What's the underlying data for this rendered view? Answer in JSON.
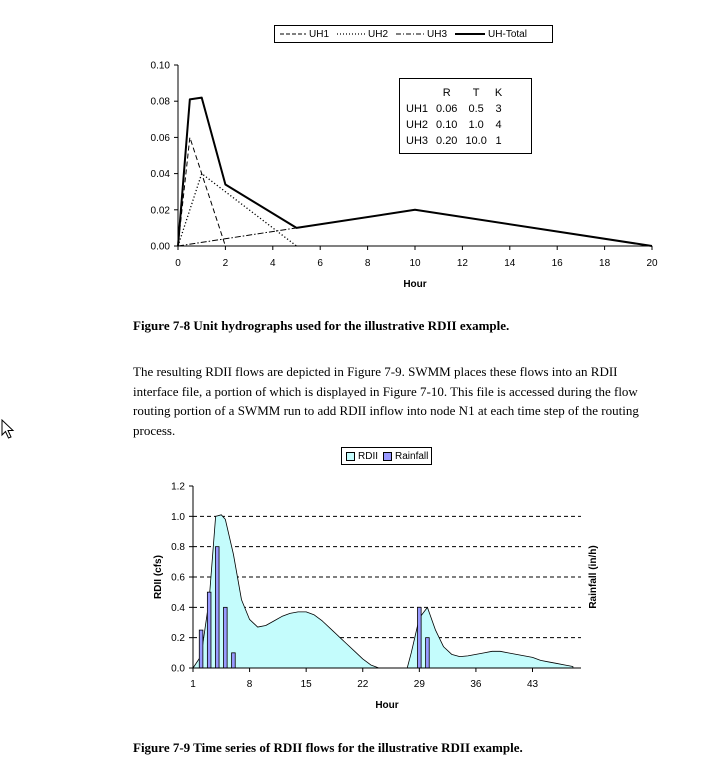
{
  "figure1": {
    "legend": [
      "UH1",
      "UH2",
      "UH3",
      "UH-Total"
    ],
    "caption": "Figure 7-8 Unit hydrographs used for the illustrative RDII example.",
    "table": {
      "headers": [
        "",
        "R",
        "T",
        "K"
      ],
      "rows": [
        [
          "UH1",
          "0.06",
          "0.5",
          "3"
        ],
        [
          "UH2",
          "0.10",
          "1.0",
          "4"
        ],
        [
          "UH3",
          "0.20",
          "10.0",
          "1"
        ]
      ]
    }
  },
  "paragraph": {
    "lines": [
      "The resulting RDII flows are depicted in Figure 7-9. SWMM places these flows into an RDII",
      "interface file, a portion of which is displayed in Figure 7-10. This file is accessed during the flow",
      "routing portion of a SWMM run to add RDII inflow into node N1 at each time step of the routing",
      "process."
    ]
  },
  "figure2": {
    "legend": [
      "RDII",
      "Rainfall"
    ],
    "caption": "Figure 7-9 Time series of RDII flows for the illustrative RDII example."
  },
  "chart_data": [
    {
      "type": "line",
      "xlabel": "Hour",
      "ylabel": "",
      "xlim": [
        0,
        20
      ],
      "ylim": [
        0,
        0.1
      ],
      "x_ticks": [
        "0",
        "2",
        "4",
        "6",
        "8",
        "10",
        "12",
        "14",
        "16",
        "18",
        "20"
      ],
      "y_ticks": [
        "0.00",
        "0.02",
        "0.04",
        "0.06",
        "0.08",
        "0.10"
      ],
      "legend_position": "top",
      "series": [
        {
          "name": "UH1",
          "style": "dashed",
          "x": [
            0,
            0.5,
            2
          ],
          "y": [
            0,
            0.06,
            0
          ]
        },
        {
          "name": "UH2",
          "style": "dotted",
          "x": [
            0,
            1,
            5
          ],
          "y": [
            0,
            0.04,
            0
          ]
        },
        {
          "name": "UH3",
          "style": "dash-dot",
          "x": [
            0,
            10,
            20
          ],
          "y": [
            0,
            0.02,
            0
          ]
        },
        {
          "name": "UH-Total",
          "style": "solid",
          "x": [
            0,
            0.5,
            1,
            2,
            5,
            10,
            20
          ],
          "y": [
            0,
            0.081,
            0.082,
            0.034,
            0.01,
            0.02,
            0
          ]
        }
      ]
    },
    {
      "type": "area",
      "xlabel": "Hour",
      "ylabel": "RDII (cfs)",
      "y2label": "Rainfall (in/h)",
      "xlim": [
        1,
        49
      ],
      "ylim": [
        0,
        1.2
      ],
      "x_ticks": [
        "1",
        "8",
        "15",
        "22",
        "29",
        "36",
        "43"
      ],
      "y_ticks": [
        "0.0",
        "0.2",
        "0.4",
        "0.6",
        "0.8",
        "1.0",
        "1.2"
      ],
      "grid": "dashed horizontal",
      "legend_position": "top",
      "colors": {
        "rdii_fill": "#c4fcfc",
        "rainfall_fill": "#9999ff"
      },
      "series": [
        {
          "name": "RDII",
          "x": [
            1,
            2,
            3,
            3.8,
            4.5,
            5,
            6,
            7,
            8,
            9,
            10,
            11,
            12,
            13,
            14,
            15,
            16,
            17,
            18,
            19,
            20,
            21,
            22,
            23,
            24,
            27.5,
            28,
            29,
            30,
            31,
            32,
            33,
            34,
            35,
            36,
            37,
            38,
            39,
            40,
            41,
            42,
            43,
            44,
            45,
            46,
            47,
            48
          ],
          "y": [
            0,
            0.08,
            0.45,
            1.0,
            1.01,
            0.98,
            0.75,
            0.45,
            0.32,
            0.27,
            0.28,
            0.31,
            0.34,
            0.36,
            0.37,
            0.37,
            0.35,
            0.31,
            0.26,
            0.21,
            0.16,
            0.11,
            0.06,
            0.02,
            0,
            0,
            0.1,
            0.33,
            0.4,
            0.25,
            0.14,
            0.09,
            0.075,
            0.08,
            0.09,
            0.1,
            0.11,
            0.11,
            0.1,
            0.09,
            0.08,
            0.07,
            0.05,
            0.04,
            0.03,
            0.02,
            0.01
          ]
        },
        {
          "name": "Rainfall",
          "x": [
            2,
            3,
            4,
            5,
            6,
            29,
            30
          ],
          "y": [
            0.25,
            0.5,
            0.8,
            0.4,
            0.1,
            0.4,
            0.2
          ]
        }
      ]
    }
  ]
}
